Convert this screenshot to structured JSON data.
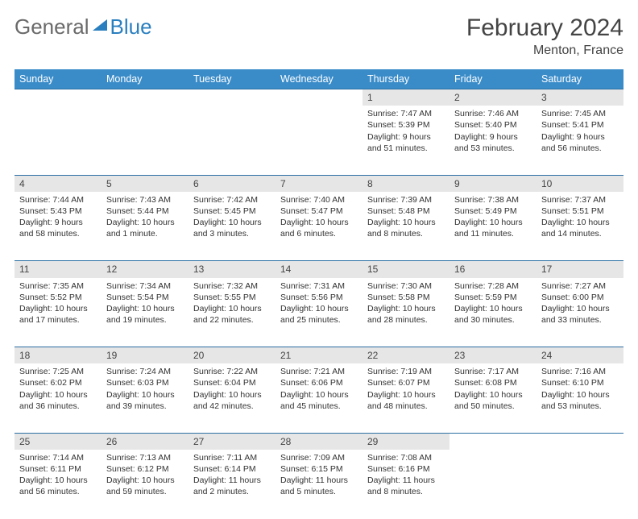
{
  "logo": {
    "text1": "General",
    "text2": "Blue"
  },
  "title": "February 2024",
  "location": "Menton, France",
  "colors": {
    "headerBg": "#3a8cc9",
    "rowBorder": "#2a6ea3",
    "dayBg": "#e6e6e6"
  },
  "weekdays": [
    "Sunday",
    "Monday",
    "Tuesday",
    "Wednesday",
    "Thursday",
    "Friday",
    "Saturday"
  ],
  "startOffset": 4,
  "days": [
    {
      "n": 1,
      "sunrise": "7:47 AM",
      "sunset": "5:39 PM",
      "daylight": "9 hours and 51 minutes."
    },
    {
      "n": 2,
      "sunrise": "7:46 AM",
      "sunset": "5:40 PM",
      "daylight": "9 hours and 53 minutes."
    },
    {
      "n": 3,
      "sunrise": "7:45 AM",
      "sunset": "5:41 PM",
      "daylight": "9 hours and 56 minutes."
    },
    {
      "n": 4,
      "sunrise": "7:44 AM",
      "sunset": "5:43 PM",
      "daylight": "9 hours and 58 minutes."
    },
    {
      "n": 5,
      "sunrise": "7:43 AM",
      "sunset": "5:44 PM",
      "daylight": "10 hours and 1 minute."
    },
    {
      "n": 6,
      "sunrise": "7:42 AM",
      "sunset": "5:45 PM",
      "daylight": "10 hours and 3 minutes."
    },
    {
      "n": 7,
      "sunrise": "7:40 AM",
      "sunset": "5:47 PM",
      "daylight": "10 hours and 6 minutes."
    },
    {
      "n": 8,
      "sunrise": "7:39 AM",
      "sunset": "5:48 PM",
      "daylight": "10 hours and 8 minutes."
    },
    {
      "n": 9,
      "sunrise": "7:38 AM",
      "sunset": "5:49 PM",
      "daylight": "10 hours and 11 minutes."
    },
    {
      "n": 10,
      "sunrise": "7:37 AM",
      "sunset": "5:51 PM",
      "daylight": "10 hours and 14 minutes."
    },
    {
      "n": 11,
      "sunrise": "7:35 AM",
      "sunset": "5:52 PM",
      "daylight": "10 hours and 17 minutes."
    },
    {
      "n": 12,
      "sunrise": "7:34 AM",
      "sunset": "5:54 PM",
      "daylight": "10 hours and 19 minutes."
    },
    {
      "n": 13,
      "sunrise": "7:32 AM",
      "sunset": "5:55 PM",
      "daylight": "10 hours and 22 minutes."
    },
    {
      "n": 14,
      "sunrise": "7:31 AM",
      "sunset": "5:56 PM",
      "daylight": "10 hours and 25 minutes."
    },
    {
      "n": 15,
      "sunrise": "7:30 AM",
      "sunset": "5:58 PM",
      "daylight": "10 hours and 28 minutes."
    },
    {
      "n": 16,
      "sunrise": "7:28 AM",
      "sunset": "5:59 PM",
      "daylight": "10 hours and 30 minutes."
    },
    {
      "n": 17,
      "sunrise": "7:27 AM",
      "sunset": "6:00 PM",
      "daylight": "10 hours and 33 minutes."
    },
    {
      "n": 18,
      "sunrise": "7:25 AM",
      "sunset": "6:02 PM",
      "daylight": "10 hours and 36 minutes."
    },
    {
      "n": 19,
      "sunrise": "7:24 AM",
      "sunset": "6:03 PM",
      "daylight": "10 hours and 39 minutes."
    },
    {
      "n": 20,
      "sunrise": "7:22 AM",
      "sunset": "6:04 PM",
      "daylight": "10 hours and 42 minutes."
    },
    {
      "n": 21,
      "sunrise": "7:21 AM",
      "sunset": "6:06 PM",
      "daylight": "10 hours and 45 minutes."
    },
    {
      "n": 22,
      "sunrise": "7:19 AM",
      "sunset": "6:07 PM",
      "daylight": "10 hours and 48 minutes."
    },
    {
      "n": 23,
      "sunrise": "7:17 AM",
      "sunset": "6:08 PM",
      "daylight": "10 hours and 50 minutes."
    },
    {
      "n": 24,
      "sunrise": "7:16 AM",
      "sunset": "6:10 PM",
      "daylight": "10 hours and 53 minutes."
    },
    {
      "n": 25,
      "sunrise": "7:14 AM",
      "sunset": "6:11 PM",
      "daylight": "10 hours and 56 minutes."
    },
    {
      "n": 26,
      "sunrise": "7:13 AM",
      "sunset": "6:12 PM",
      "daylight": "10 hours and 59 minutes."
    },
    {
      "n": 27,
      "sunrise": "7:11 AM",
      "sunset": "6:14 PM",
      "daylight": "11 hours and 2 minutes."
    },
    {
      "n": 28,
      "sunrise": "7:09 AM",
      "sunset": "6:15 PM",
      "daylight": "11 hours and 5 minutes."
    },
    {
      "n": 29,
      "sunrise": "7:08 AM",
      "sunset": "6:16 PM",
      "daylight": "11 hours and 8 minutes."
    }
  ]
}
